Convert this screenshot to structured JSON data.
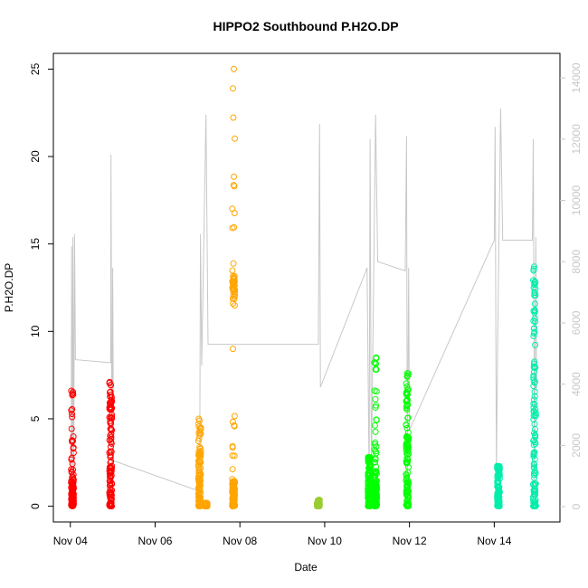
{
  "chart_data": {
    "type": "scatter",
    "title": "HIPPO2 Southbound P.H2O.DP",
    "xlabel": "Date",
    "ylabel": "P.H2O.DP",
    "x_unit": "days in November (date axis)",
    "xlim": [
      3.6,
      15.55
    ],
    "ylim": [
      -0.9,
      25.9
    ],
    "x_ticks": [
      {
        "x": 4,
        "label": "Nov 04"
      },
      {
        "x": 6,
        "label": "Nov 06"
      },
      {
        "x": 8,
        "label": "Nov 08"
      },
      {
        "x": 10,
        "label": "Nov 10"
      },
      {
        "x": 12,
        "label": "Nov 12"
      },
      {
        "x": 14,
        "label": "Nov 14"
      }
    ],
    "y_ticks": [
      0,
      5,
      10,
      15,
      20,
      25
    ],
    "y2_ticks": [
      0,
      2000,
      4000,
      6000,
      8000,
      10000,
      12000,
      14000
    ],
    "y2lim": [
      -500,
      14800
    ],
    "grid": false,
    "colors": {
      "flight1": "#ff0000",
      "flight2": "#ffa500",
      "flight3": "#9acd32",
      "flight4": "#00ff00",
      "flight5": "#00eeaa",
      "altitude": "#c8c8c8"
    },
    "series": [
      {
        "color_key": "flight1",
        "clusters": [
          {
            "x": 4.05,
            "ymin": 0,
            "ymax": 6.6,
            "dense_to": 1.5
          },
          {
            "x": 4.95,
            "ymin": 0,
            "ymax": 7.1,
            "dense_to": 5.5
          }
        ]
      },
      {
        "color_key": "flight2",
        "clusters": [
          {
            "x": 7.05,
            "ymin": 0,
            "ymax": 5.0,
            "dense_to": 2.8
          },
          {
            "x": 7.2,
            "ymin": 0,
            "ymax": 0.2,
            "dense_to": 0.2
          },
          {
            "x": 7.85,
            "ymin": 0,
            "ymax": 25.0,
            "dense_to": 1.5,
            "band": [
              11.8,
              13.2
            ]
          }
        ]
      },
      {
        "color_key": "flight3",
        "clusters": [
          {
            "x": 9.85,
            "ymin": 0,
            "ymax": 0.4,
            "dense_to": 0.4
          }
        ]
      },
      {
        "color_key": "flight4",
        "clusters": [
          {
            "x": 11.05,
            "ymin": 0,
            "ymax": 2.8,
            "dense_to": 2.6
          },
          {
            "x": 11.2,
            "ymin": 0,
            "ymax": 8.5,
            "dense_to": 2.0
          },
          {
            "x": 11.95,
            "ymin": 0,
            "ymax": 7.6,
            "dense_to": 4.0
          }
        ]
      },
      {
        "color_key": "flight5",
        "clusters": [
          {
            "x": 14.1,
            "ymin": 0,
            "ymax": 2.3,
            "dense_to": 2.1
          },
          {
            "x": 14.95,
            "ymin": 0,
            "ymax": 13.7,
            "dense_to": 8.5
          }
        ]
      }
    ],
    "altitude_line": [
      [
        4.02,
        200
      ],
      [
        4.03,
        8500
      ],
      [
        4.05,
        600
      ],
      [
        4.06,
        8800
      ],
      [
        4.08,
        1000
      ],
      [
        4.1,
        8900
      ],
      [
        4.12,
        4800
      ],
      [
        4.95,
        4700
      ],
      [
        4.96,
        11500
      ],
      [
        4.98,
        800
      ],
      [
        5.0,
        7800
      ],
      [
        5.02,
        1500
      ],
      [
        7.05,
        500
      ],
      [
        7.07,
        8900
      ],
      [
        7.1,
        4600
      ],
      [
        7.2,
        12800
      ],
      [
        7.25,
        5300
      ],
      [
        9.85,
        5300
      ],
      [
        9.88,
        12500
      ],
      [
        9.9,
        3900
      ],
      [
        11.0,
        7800
      ],
      [
        11.05,
        800
      ],
      [
        11.07,
        12000
      ],
      [
        11.1,
        1000
      ],
      [
        11.2,
        12800
      ],
      [
        11.25,
        8000
      ],
      [
        11.9,
        7700
      ],
      [
        11.93,
        12100
      ],
      [
        11.95,
        500
      ],
      [
        11.98,
        7800
      ],
      [
        12.0,
        2500
      ],
      [
        14.0,
        8700
      ],
      [
        14.02,
        12400
      ],
      [
        14.05,
        1200
      ],
      [
        14.08,
        5200
      ],
      [
        14.15,
        13000
      ],
      [
        14.2,
        8700
      ],
      [
        14.9,
        8700
      ],
      [
        14.92,
        12000
      ],
      [
        14.95,
        300
      ],
      [
        14.98,
        8800
      ],
      [
        15.0,
        3800
      ]
    ]
  }
}
